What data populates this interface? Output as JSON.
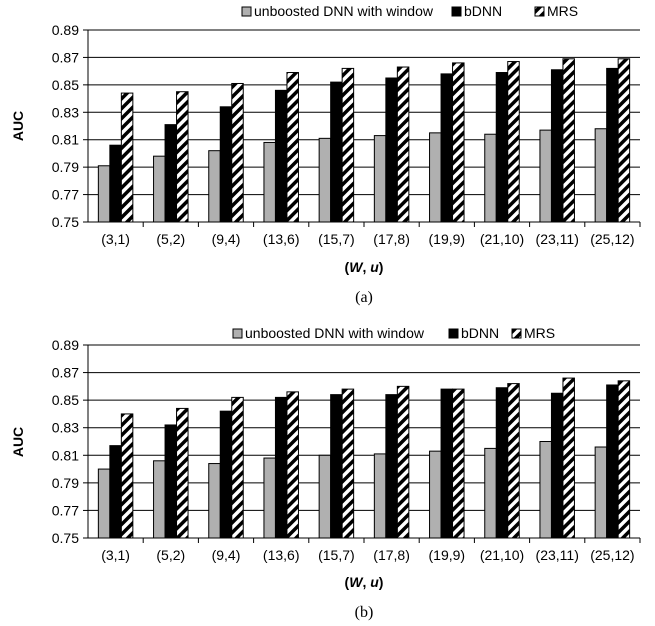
{
  "chart_data": [
    {
      "type": "bar",
      "ylabel": "AUC",
      "xlabel_main": "W",
      "xlabel_sep": ", ",
      "xlabel_second": "u",
      "caption": "(a)",
      "ylim": [
        0.75,
        0.89
      ],
      "yticks": [
        0.75,
        0.77,
        0.79,
        0.81,
        0.83,
        0.85,
        0.87,
        0.89
      ],
      "categories": [
        "(3,1)",
        "(5,2)",
        "(9,4)",
        "(13,6)",
        "(15,7)",
        "(17,8)",
        "(19,9)",
        "(21,10)",
        "(23,11)",
        "(25,12)"
      ],
      "series": [
        {
          "name": "unboosted DNN with window",
          "values": [
            0.791,
            0.798,
            0.802,
            0.808,
            0.811,
            0.813,
            0.815,
            0.814,
            0.817,
            0.818
          ]
        },
        {
          "name": "bDNN",
          "values": [
            0.806,
            0.821,
            0.834,
            0.846,
            0.852,
            0.855,
            0.858,
            0.859,
            0.861,
            0.862
          ]
        },
        {
          "name": "MRS",
          "values": [
            0.844,
            0.845,
            0.851,
            0.859,
            0.862,
            0.863,
            0.866,
            0.867,
            0.869,
            0.869
          ]
        }
      ],
      "grid": "horizontal",
      "legend_position": "top-right"
    },
    {
      "type": "bar",
      "ylabel": "AUC",
      "xlabel_main": "W",
      "xlabel_sep": ", ",
      "xlabel_second": "u",
      "caption": "(b)",
      "ylim": [
        0.75,
        0.89
      ],
      "yticks": [
        0.75,
        0.77,
        0.79,
        0.81,
        0.83,
        0.85,
        0.87,
        0.89
      ],
      "categories": [
        "(3,1)",
        "(5,2)",
        "(9,4)",
        "(13,6)",
        "(15,7)",
        "(17,8)",
        "(19,9)",
        "(21,10)",
        "(23,11)",
        "(25,12)"
      ],
      "series": [
        {
          "name": "unboosted DNN with window",
          "values": [
            0.8,
            0.806,
            0.804,
            0.808,
            0.81,
            0.811,
            0.813,
            0.815,
            0.82,
            0.816
          ]
        },
        {
          "name": "bDNN",
          "values": [
            0.817,
            0.832,
            0.842,
            0.852,
            0.854,
            0.854,
            0.858,
            0.859,
            0.855,
            0.861
          ]
        },
        {
          "name": "MRS",
          "values": [
            0.84,
            0.844,
            0.852,
            0.856,
            0.858,
            0.86,
            0.858,
            0.862,
            0.866,
            0.864
          ]
        }
      ],
      "grid": "horizontal",
      "legend_position": "top-right"
    }
  ],
  "colors": {
    "unboosted": "#b0b0b0",
    "bdnn": "#000000",
    "mrs_stripe": "#000000",
    "mrs_fill": "#ffffff",
    "gridline": "#000000"
  }
}
